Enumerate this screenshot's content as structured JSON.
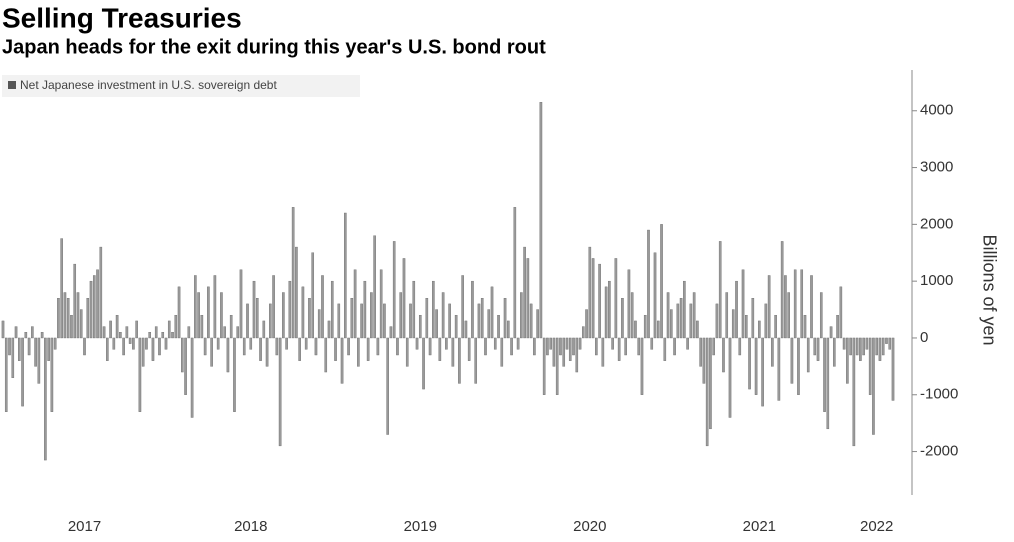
{
  "chart_data": {
    "type": "bar",
    "title": "Selling Treasuries",
    "subtitle": "Japan heads for the exit during this year's U.S. bond rout",
    "y_axis_label": "Billions of yen",
    "legend_position": "top-left",
    "series": [
      {
        "name": "Net Japanese investment in U.S. sovereign debt",
        "color": "#9a9a9a",
        "values": [
          300,
          -1300,
          -300,
          -700,
          200,
          -400,
          -1200,
          100,
          -300,
          200,
          -500,
          -800,
          100,
          -2150,
          -400,
          -1300,
          -200,
          700,
          1750,
          800,
          700,
          400,
          1300,
          800,
          500,
          -300,
          700,
          1000,
          1100,
          1200,
          1600,
          200,
          -400,
          300,
          -200,
          400,
          100,
          -300,
          200,
          -100,
          -200,
          300,
          -1300,
          -500,
          -200,
          100,
          -400,
          200,
          -300,
          100,
          -200,
          300,
          100,
          400,
          900,
          -600,
          -1000,
          200,
          -1400,
          1100,
          800,
          400,
          -300,
          900,
          -500,
          1100,
          -200,
          800,
          200,
          -600,
          400,
          -1300,
          200,
          1200,
          -300,
          600,
          -200,
          1000,
          700,
          -400,
          300,
          -500,
          600,
          1100,
          -300,
          -1900,
          800,
          -200,
          1000,
          2300,
          1600,
          -400,
          900,
          -200,
          700,
          1500,
          -300,
          500,
          1100,
          -600,
          300,
          1000,
          -400,
          600,
          -800,
          2200,
          -300,
          700,
          1200,
          -500,
          600,
          1000,
          -400,
          800,
          1800,
          -300,
          1200,
          600,
          -1700,
          200,
          1700,
          -300,
          800,
          1400,
          -500,
          600,
          1000,
          -200,
          400,
          -900,
          700,
          -300,
          1000,
          500,
          -400,
          800,
          -200,
          600,
          -500,
          400,
          -800,
          1100,
          300,
          -400,
          1000,
          -800,
          600,
          700,
          -300,
          500,
          900,
          -200,
          400,
          -500,
          700,
          300,
          -300,
          2300,
          -200,
          800,
          1600,
          1400,
          600,
          -300,
          500,
          4150,
          -1000,
          -300,
          -200,
          -500,
          -1000,
          -300,
          -500,
          -200,
          -400,
          -300,
          -600,
          -200,
          200,
          500,
          1600,
          1400,
          -300,
          1300,
          -500,
          900,
          1000,
          -200,
          1400,
          -400,
          700,
          -300,
          1200,
          800,
          300,
          -300,
          -1000,
          400,
          1900,
          -200,
          1500,
          300,
          2000,
          -400,
          800,
          500,
          -300,
          600,
          700,
          1000,
          -200,
          600,
          800,
          300,
          -500,
          -800,
          -1900,
          -1600,
          -300,
          600,
          1700,
          -600,
          800,
          -1400,
          500,
          1000,
          -300,
          1200,
          400,
          -900,
          700,
          -1000,
          300,
          -1200,
          600,
          1100,
          -500,
          400,
          -1100,
          1700,
          1100,
          800,
          -800,
          1200,
          -1000,
          1200,
          400,
          -600,
          1100,
          -300,
          -400,
          800,
          -1300,
          -1600,
          200,
          -500,
          400,
          900,
          -200,
          -800,
          -300,
          -1900,
          -300,
          -400,
          -300,
          -200,
          -1000,
          -1700,
          -300,
          -400,
          -300,
          -100,
          -200,
          -1100
        ]
      }
    ],
    "categories": [
      null,
      null,
      null,
      null,
      null,
      null,
      null,
      null,
      null,
      null,
      null,
      null,
      null,
      null,
      null,
      null,
      null,
      null,
      null,
      null,
      null,
      null,
      null,
      null,
      null,
      "2017",
      null,
      null,
      null,
      null,
      null,
      null,
      null,
      null,
      null,
      null,
      null,
      null,
      null,
      null,
      null,
      null,
      null,
      null,
      null,
      null,
      null,
      null,
      null,
      null,
      null,
      null,
      null,
      null,
      null,
      null,
      null,
      null,
      null,
      null,
      null,
      null,
      null,
      null,
      null,
      null,
      null,
      null,
      null,
      null,
      null,
      null,
      null,
      null,
      null,
      null,
      "2018",
      null,
      null,
      null,
      null,
      null,
      null,
      null,
      null,
      null,
      null,
      null,
      null,
      null,
      null,
      null,
      null,
      null,
      null,
      null,
      null,
      null,
      null,
      null,
      null,
      null,
      null,
      null,
      null,
      null,
      null,
      null,
      null,
      null,
      null,
      null,
      null,
      null,
      null,
      null,
      null,
      null,
      null,
      null,
      null,
      null,
      null,
      null,
      null,
      null,
      null,
      null,
      "2019",
      null,
      null,
      null,
      null,
      null,
      null,
      null,
      null,
      null,
      null,
      null,
      null,
      null,
      null,
      null,
      null,
      null,
      null,
      null,
      null,
      null,
      null,
      null,
      null,
      null,
      null,
      null,
      null,
      null,
      null,
      null,
      null,
      null,
      null,
      null,
      null,
      null,
      null,
      null,
      null,
      null,
      null,
      null,
      null,
      null,
      null,
      null,
      null,
      null,
      null,
      null,
      "2020",
      null,
      null,
      null,
      null,
      null,
      null,
      null,
      null,
      null,
      null,
      null,
      null,
      null,
      null,
      null,
      null,
      null,
      null,
      null,
      null,
      null,
      null,
      null,
      null,
      null,
      null,
      null,
      null,
      null,
      null,
      null,
      null,
      null,
      null,
      null,
      null,
      null,
      null,
      null,
      null,
      null,
      null,
      null,
      null,
      null,
      null,
      null,
      null,
      null,
      null,
      null,
      "2021",
      null,
      null,
      null,
      null,
      null,
      null,
      null,
      null,
      null,
      null,
      null,
      null,
      null,
      null,
      null,
      null,
      null,
      null,
      null,
      null,
      null,
      null,
      null,
      null,
      null,
      null,
      null,
      null,
      null,
      null,
      null,
      null,
      null,
      null,
      null,
      "2022",
      null,
      null,
      null,
      null,
      null
    ],
    "ylim": [
      -2800,
      4700
    ],
    "yticks": [
      -2000,
      -1000,
      0,
      1000,
      2000,
      3000,
      4000
    ],
    "grid": false
  }
}
